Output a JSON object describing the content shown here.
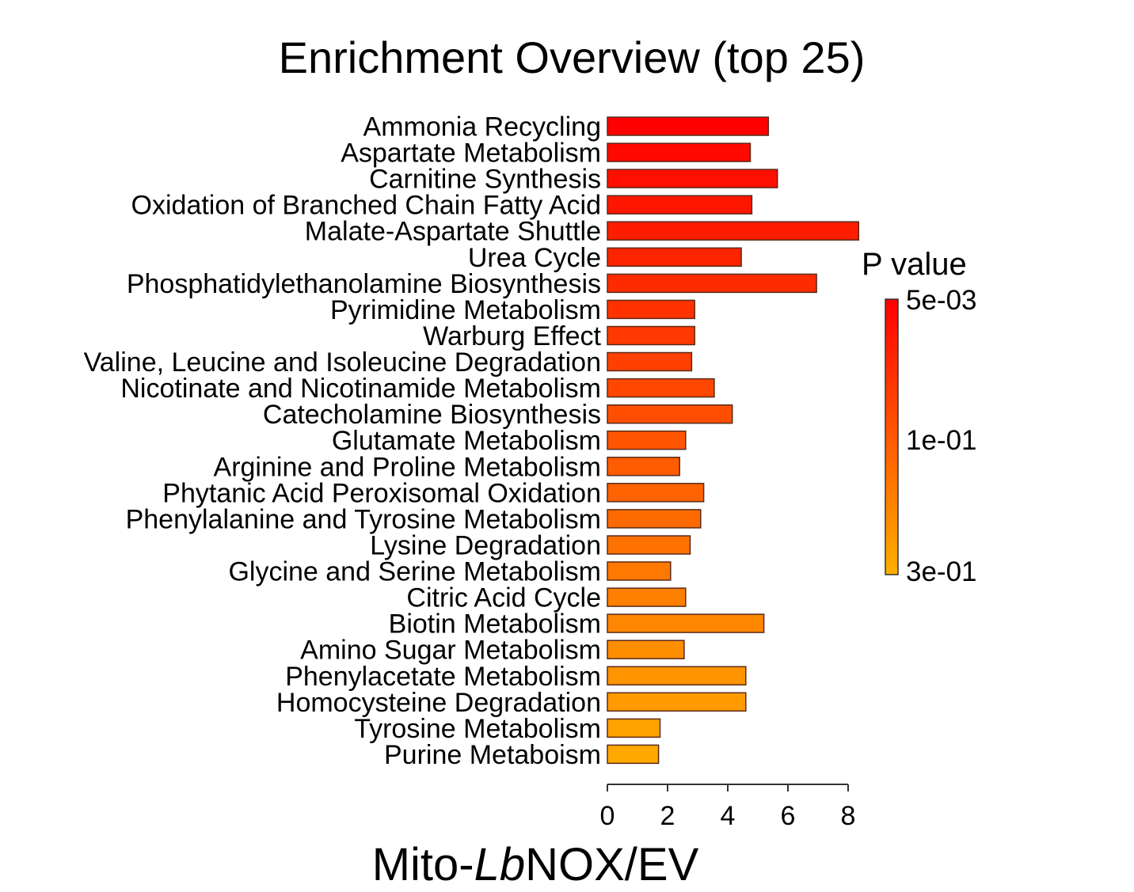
{
  "chart_data": {
    "type": "bar",
    "orientation": "horizontal",
    "title": "Enrichment Overview (top 25)",
    "xlabel_parts": [
      {
        "text": "Mito-",
        "italic": false
      },
      {
        "text": "Lb",
        "italic": true
      },
      {
        "text": "NOX/EV",
        "italic": false
      }
    ],
    "xlim": [
      0,
      8
    ],
    "xticks": [
      "0",
      "2",
      "4",
      "6",
      "8"
    ],
    "highlight_color": "#1a1adb",
    "categories": [
      "Ammonia Recycling",
      "Aspartate Metabolism",
      "Carnitine Synthesis",
      "Oxidation of Branched Chain Fatty Acid",
      "Malate-Aspartate Shuttle",
      "Urea Cycle",
      "Phosphatidylethanolamine Biosynthesis",
      "Pyrimidine Metabolism",
      "Warburg Effect",
      "Valine, Leucine and Isoleucine Degradation",
      "Nicotinate and Nicotinamide Metabolism",
      "Catecholamine Biosynthesis",
      "Glutamate Metabolism",
      "Arginine and Proline Metabolism",
      "Phytanic Acid Peroxisomal Oxidation",
      "Phenylalanine and Tyrosine Metabolism",
      "Lysine Degradation",
      "Glycine and Serine Metabolism",
      "Citric Acid Cycle",
      "Biotin Metabolism",
      "Amino Sugar Metabolism",
      "Phenylacetate Metabolism",
      "Homocysteine Degradation",
      "Tyrosine Metabolism",
      "Purine Metaboism"
    ],
    "highlighted": [
      false,
      false,
      false,
      false,
      false,
      false,
      false,
      true,
      false,
      false,
      false,
      false,
      false,
      false,
      false,
      false,
      false,
      false,
      false,
      false,
      false,
      false,
      false,
      false,
      false
    ],
    "values": [
      5.35,
      4.75,
      5.65,
      4.8,
      8.35,
      4.45,
      6.95,
      2.9,
      2.9,
      2.8,
      3.55,
      4.15,
      2.6,
      2.4,
      3.2,
      3.1,
      2.75,
      2.1,
      2.6,
      5.2,
      2.55,
      4.6,
      4.6,
      1.75,
      1.7
    ],
    "colors": [
      "#ff0000",
      "#ff0800",
      "#ff0f00",
      "#ff1600",
      "#ff1d00",
      "#ff2400",
      "#ff2b00",
      "#ff3200",
      "#ff3900",
      "#ff4000",
      "#ff4700",
      "#ff4e00",
      "#ff5500",
      "#ff5c00",
      "#ff6300",
      "#ff6a00",
      "#ff7100",
      "#ff7800",
      "#ff7f00",
      "#ff8600",
      "#ff8d00",
      "#ff9400",
      "#ff9b00",
      "#ffa200",
      "#ffa900"
    ],
    "legend": {
      "title": "P value",
      "ticks": [
        "5e-03",
        "1e-01",
        "3e-01"
      ],
      "color_top": "#ff0000",
      "color_bottom": "#ffb000"
    }
  }
}
